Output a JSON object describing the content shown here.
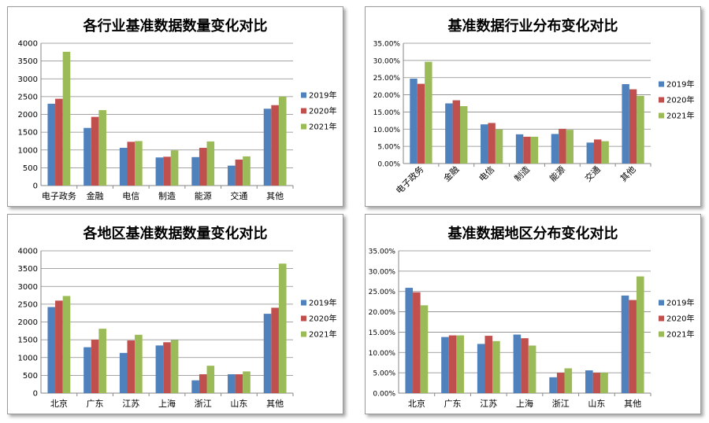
{
  "colors": {
    "s2019": "#4f81bd",
    "s2020": "#c0504d",
    "s2021": "#9bbb59",
    "grid": "#868686"
  },
  "chart_data": [
    {
      "type": "bar",
      "title": "各行业基准数据数量变化对比",
      "categories": [
        "电子政务",
        "金融",
        "电信",
        "制造",
        "能源",
        "交通",
        "其他"
      ],
      "series": [
        {
          "name": "2019年",
          "values": [
            2300,
            1620,
            1060,
            790,
            800,
            560,
            2160
          ]
        },
        {
          "name": "2020年",
          "values": [
            2440,
            1930,
            1230,
            810,
            1060,
            730,
            2260
          ]
        },
        {
          "name": "2021年",
          "values": [
            3760,
            2120,
            1250,
            990,
            1240,
            820,
            2500
          ]
        }
      ],
      "ylim": [
        0,
        4000
      ],
      "yticks": [
        "0",
        "500",
        "1000",
        "1500",
        "2000",
        "2500",
        "3000",
        "3500",
        "4000"
      ],
      "legend": "right",
      "xlabel_rotated": false
    },
    {
      "type": "bar",
      "title": "基准数据行业分布变化对比",
      "categories": [
        "电子政务",
        "金融",
        "电信",
        "制造",
        "能源",
        "交通",
        "其他"
      ],
      "series": [
        {
          "name": "2019年",
          "values": [
            24.7,
            17.5,
            11.4,
            8.5,
            8.6,
            6.1,
            23.1
          ]
        },
        {
          "name": "2020年",
          "values": [
            23.2,
            18.4,
            11.8,
            7.8,
            10.1,
            7.0,
            21.6
          ]
        },
        {
          "name": "2021年",
          "values": [
            29.6,
            16.7,
            9.9,
            7.8,
            9.8,
            6.5,
            19.7
          ]
        }
      ],
      "ylim": [
        0,
        35
      ],
      "yticks": [
        "0.00%",
        "5.00%",
        "10.00%",
        "15.00%",
        "20.00%",
        "25.00%",
        "30.00%",
        "35.00%"
      ],
      "legend": "right",
      "xlabel_rotated": true
    },
    {
      "type": "bar",
      "title": "各地区基准数据数量变化对比",
      "categories": [
        "北京",
        "广东",
        "江苏",
        "上海",
        "浙江",
        "山东",
        "其他"
      ],
      "series": [
        {
          "name": "2019年",
          "values": [
            2420,
            1290,
            1130,
            1340,
            360,
            530,
            2230
          ]
        },
        {
          "name": "2020年",
          "values": [
            2600,
            1500,
            1480,
            1430,
            530,
            530,
            2400
          ]
        },
        {
          "name": "2021年",
          "values": [
            2730,
            1810,
            1640,
            1490,
            770,
            610,
            3640
          ]
        }
      ],
      "ylim": [
        0,
        4000
      ],
      "yticks": [
        "0",
        "500",
        "1000",
        "1500",
        "2000",
        "2500",
        "3000",
        "3500",
        "4000"
      ],
      "legend": "right",
      "xlabel_rotated": false
    },
    {
      "type": "bar",
      "title": "基准数据地区分布变化对比",
      "categories": [
        "北京",
        "广东",
        "江苏",
        "上海",
        "浙江",
        "山东",
        "其他"
      ],
      "series": [
        {
          "name": "2019年",
          "values": [
            25.9,
            13.8,
            12.1,
            14.4,
            3.9,
            5.6,
            24.0
          ]
        },
        {
          "name": "2020年",
          "values": [
            24.8,
            14.2,
            14.1,
            13.5,
            5.0,
            5.0,
            22.9
          ]
        },
        {
          "name": "2021年",
          "values": [
            21.6,
            14.2,
            12.8,
            11.7,
            6.1,
            5.0,
            28.7
          ]
        }
      ],
      "ylim": [
        0,
        35
      ],
      "yticks": [
        "0.00%",
        "5.00%",
        "10.00%",
        "15.00%",
        "20.00%",
        "25.00%",
        "30.00%",
        "35.00%"
      ],
      "legend": "right",
      "xlabel_rotated": false
    }
  ]
}
